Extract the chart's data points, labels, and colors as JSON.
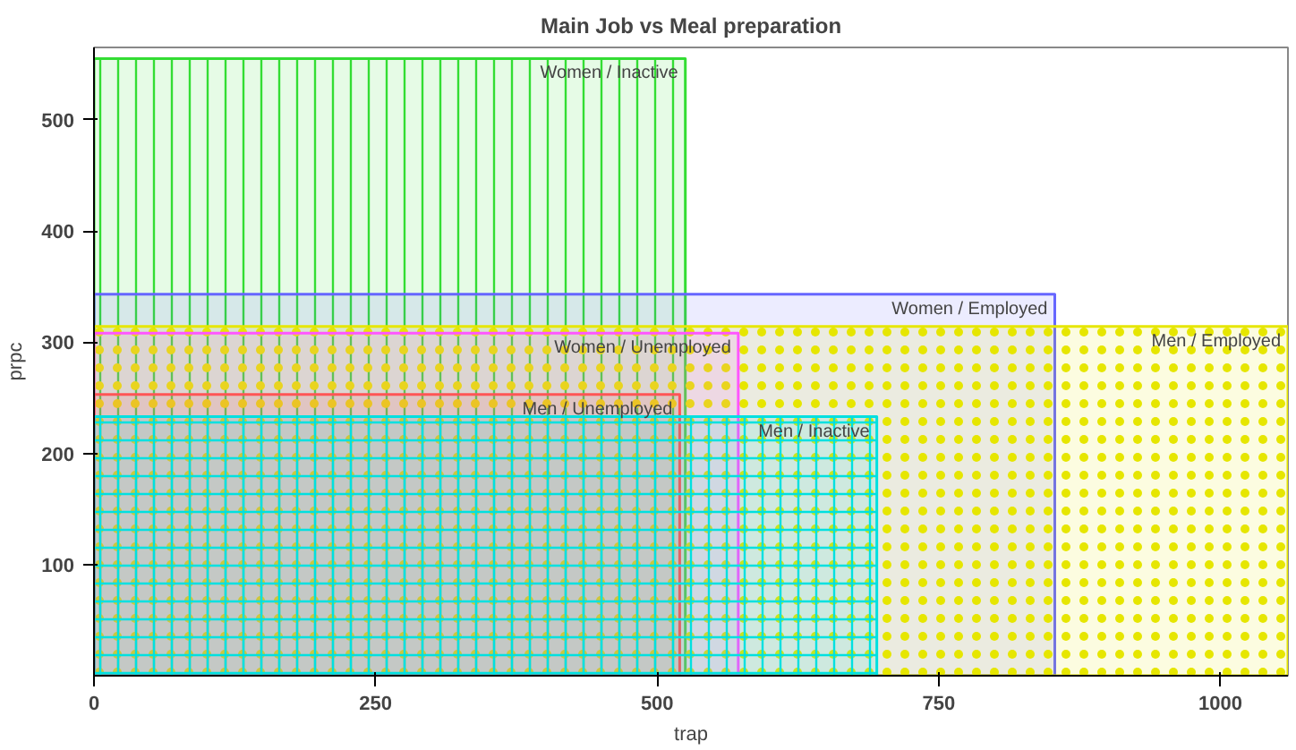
{
  "chart_data": {
    "type": "area",
    "title": "Main Job vs Meal preparation",
    "xlabel": "trap",
    "ylabel": "prpc",
    "series": [
      {
        "name": "Women / Inactive",
        "color": "#33dd33",
        "x": [
          0,
          525
        ],
        "values": [
          555,
          555
        ]
      },
      {
        "name": "Women / Employed",
        "color": "#6666ff",
        "x": [
          0,
          853
        ],
        "values": [
          343,
          343
        ]
      },
      {
        "name": "Men / Employed",
        "color": "#e6e600",
        "x": [
          0,
          1060
        ],
        "values": [
          314,
          314
        ]
      },
      {
        "name": "Women / Unemployed",
        "color": "#ff55ff",
        "x": [
          0,
          572
        ],
        "values": [
          308,
          308
        ]
      },
      {
        "name": "Men / Unemployed",
        "color": "#ff5555",
        "x": [
          0,
          520
        ],
        "values": [
          253,
          253
        ]
      },
      {
        "name": "Men / Inactive",
        "color": "#00e0e0",
        "x": [
          0,
          695
        ],
        "values": [
          233,
          233
        ]
      }
    ],
    "xlim": [
      0,
      1060
    ],
    "ylim": [
      0,
      565
    ],
    "xticks": [
      0,
      250,
      500,
      750,
      1000
    ],
    "yticks": [
      100,
      200,
      300,
      400,
      500
    ],
    "grid": false,
    "legend": false
  }
}
